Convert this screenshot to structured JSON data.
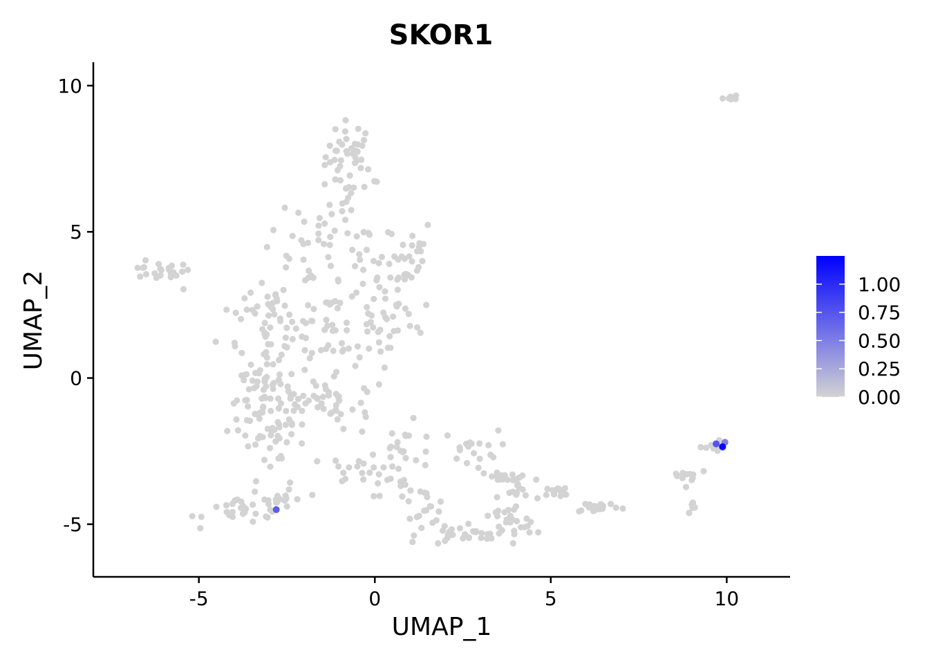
{
  "chart_data": {
    "type": "scatter",
    "title": "SKOR1",
    "xlabel": "UMAP_1",
    "ylabel": "UMAP_2",
    "xlim": [
      -8,
      11.8
    ],
    "ylim": [
      -6.8,
      10.8
    ],
    "xticks": [
      -5,
      0,
      5,
      10
    ],
    "yticks": [
      -5,
      0,
      5,
      10
    ],
    "xtick_labels": [
      "-5",
      "0",
      "5",
      "10"
    ],
    "ytick_labels": [
      "-5",
      "0",
      "5",
      "10"
    ],
    "grid": false,
    "legend": {
      "type": "colorbar",
      "placement": "right",
      "ticks": [
        0,
        0.25,
        0.5,
        0.75,
        1.0
      ],
      "tick_labels": [
        "0.00",
        "0.25",
        "0.50",
        "0.75",
        "1.00"
      ],
      "max": 1.25,
      "low_color": "#d3d3d3",
      "high_color": "#0000ff"
    },
    "clusters": [
      {
        "cx": -0.7,
        "cy": 7.6,
        "sx": 0.35,
        "sy": 0.6,
        "n": 40
      },
      {
        "cx": -0.6,
        "cy": 6.0,
        "sx": 0.4,
        "sy": 0.5,
        "n": 14
      },
      {
        "cx": -6.2,
        "cy": 3.65,
        "sx": 0.5,
        "sy": 0.15,
        "n": 22
      },
      {
        "cx": -1.5,
        "cy": 4.3,
        "sx": 0.9,
        "sy": 0.7,
        "n": 38
      },
      {
        "cx": 0.6,
        "cy": 4.2,
        "sx": 0.6,
        "sy": 0.7,
        "n": 34
      },
      {
        "cx": -3.0,
        "cy": 2.0,
        "sx": 0.7,
        "sy": 0.9,
        "n": 50
      },
      {
        "cx": -1.2,
        "cy": 1.8,
        "sx": 0.9,
        "sy": 0.9,
        "n": 55
      },
      {
        "cx": 0.4,
        "cy": 1.9,
        "sx": 0.6,
        "sy": 0.7,
        "n": 30
      },
      {
        "cx": -3.2,
        "cy": -0.7,
        "sx": 0.5,
        "sy": 0.6,
        "n": 55
      },
      {
        "cx": -2.0,
        "cy": -0.7,
        "sx": 0.8,
        "sy": 0.8,
        "n": 35
      },
      {
        "cx": -1.0,
        "cy": -1.0,
        "sx": 0.7,
        "sy": 0.5,
        "n": 20
      },
      {
        "cx": -3.0,
        "cy": -2.5,
        "sx": 0.4,
        "sy": 0.7,
        "n": 25
      },
      {
        "cx": -3.6,
        "cy": -4.5,
        "sx": 0.6,
        "sy": 0.25,
        "n": 30
      },
      {
        "cx": -2.5,
        "cy": -4.2,
        "sx": 0.3,
        "sy": 0.3,
        "n": 12
      },
      {
        "cx": -0.5,
        "cy": -3.1,
        "sx": 0.4,
        "sy": 0.25,
        "n": 14
      },
      {
        "cx": 0.8,
        "cy": -2.8,
        "sx": 0.5,
        "sy": 0.6,
        "n": 35
      },
      {
        "cx": 1.3,
        "cy": -4.4,
        "sx": 0.4,
        "sy": 0.3,
        "n": 18
      },
      {
        "cx": 2.5,
        "cy": -5.4,
        "sx": 0.6,
        "sy": 0.15,
        "n": 28
      },
      {
        "cx": 2.7,
        "cy": -2.4,
        "sx": 0.4,
        "sy": 0.3,
        "n": 18
      },
      {
        "cx": 3.7,
        "cy": -5.0,
        "sx": 0.5,
        "sy": 0.3,
        "n": 24
      },
      {
        "cx": 4.1,
        "cy": -3.9,
        "sx": 0.3,
        "sy": 0.5,
        "n": 22
      },
      {
        "cx": 3.4,
        "cy": -3.3,
        "sx": 0.3,
        "sy": 0.3,
        "n": 8
      },
      {
        "cx": 5.3,
        "cy": -3.9,
        "sx": 0.25,
        "sy": 0.1,
        "n": 12
      },
      {
        "cx": 6.3,
        "cy": -4.4,
        "sx": 0.35,
        "sy": 0.1,
        "n": 18
      },
      {
        "cx": 8.9,
        "cy": -3.3,
        "sx": 0.3,
        "sy": 0.15,
        "n": 12
      },
      {
        "cx": 9.05,
        "cy": -4.45,
        "sx": 0.1,
        "sy": 0.1,
        "n": 7
      },
      {
        "cx": 9.7,
        "cy": -2.4,
        "sx": 0.15,
        "sy": 0.15,
        "n": 12
      },
      {
        "cx": 10.1,
        "cy": 9.6,
        "sx": 0.1,
        "sy": 0.06,
        "n": 8
      }
    ],
    "highlighted_points": [
      {
        "x": -2.8,
        "y": -4.5,
        "value": 0.7
      },
      {
        "x": 9.7,
        "y": -2.25,
        "value": 0.75
      },
      {
        "x": 9.95,
        "y": -2.2,
        "value": 0.5
      },
      {
        "x": 9.88,
        "y": -2.35,
        "value": 1.2
      }
    ]
  }
}
